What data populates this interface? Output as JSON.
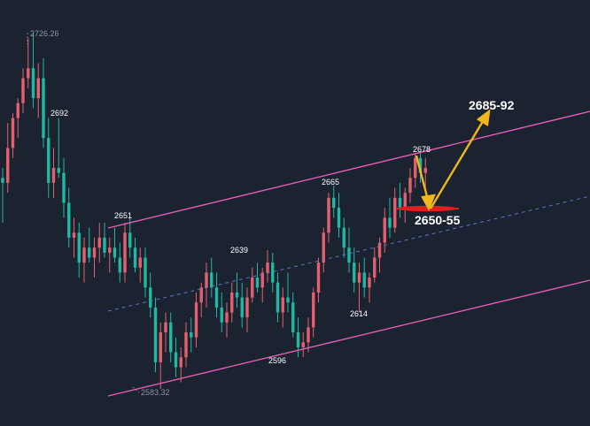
{
  "chart_data": {
    "type": "candlestick",
    "instrument_hint": "",
    "title": "",
    "xlabel": "",
    "ylabel": "",
    "ylim": [
      2570,
      2735
    ],
    "colors": {
      "background": "#1b2230",
      "up_candle": "#e4606e",
      "down_candle": "#1fb8a2",
      "channel_lines": "#e25db4",
      "midline": "#5a79c2",
      "arrows": "#f2b71b",
      "support_mark": "#e01e1e"
    },
    "price_labels": {
      "high": "2726.26",
      "low": "2583.32",
      "p2692": "2692",
      "p2651": "2651",
      "p2639": "2639",
      "p2665": "2665",
      "p2678": "2678",
      "p2614": "2614",
      "p2596": "2596"
    },
    "annotations": {
      "target": "2685-92",
      "support": "2650-55"
    },
    "ohlc": [
      [
        2668,
        2672,
        2650,
        2666
      ],
      [
        2666,
        2690,
        2662,
        2680
      ],
      [
        2680,
        2694,
        2676,
        2692
      ],
      [
        2692,
        2700,
        2684,
        2698
      ],
      [
        2698,
        2712,
        2694,
        2708
      ],
      [
        2708,
        2724,
        2704,
        2712
      ],
      [
        2712,
        2726.26,
        2696,
        2700
      ],
      [
        2700,
        2714,
        2692,
        2708
      ],
      [
        2708,
        2716,
        2680,
        2684
      ],
      [
        2684,
        2692,
        2660,
        2666
      ],
      [
        2666,
        2680,
        2660,
        2672
      ],
      [
        2672,
        2692,
        2668,
        2670
      ],
      [
        2670,
        2676,
        2652,
        2658
      ],
      [
        2658,
        2664,
        2640,
        2644
      ],
      [
        2644,
        2652,
        2636,
        2646
      ],
      [
        2646,
        2650,
        2628,
        2634
      ],
      [
        2634,
        2644,
        2626,
        2640
      ],
      [
        2640,
        2648,
        2634,
        2636
      ],
      [
        2636,
        2644,
        2628,
        2640
      ],
      [
        2640,
        2650,
        2634,
        2644
      ],
      [
        2644,
        2650,
        2636,
        2638
      ],
      [
        2638,
        2644,
        2630,
        2640
      ],
      [
        2640,
        2648,
        2634,
        2636
      ],
      [
        2636,
        2642,
        2626,
        2630
      ],
      [
        2630,
        2650,
        2626,
        2646
      ],
      [
        2646,
        2652,
        2636,
        2640
      ],
      [
        2640,
        2644,
        2630,
        2632
      ],
      [
        2632,
        2640,
        2626,
        2636
      ],
      [
        2636,
        2640,
        2620,
        2624
      ],
      [
        2624,
        2630,
        2612,
        2616
      ],
      [
        2616,
        2620,
        2590,
        2594
      ],
      [
        2594,
        2610,
        2583.32,
        2606
      ],
      [
        2606,
        2614,
        2598,
        2610
      ],
      [
        2610,
        2614,
        2594,
        2598
      ],
      [
        2598,
        2604,
        2588,
        2592
      ],
      [
        2592,
        2600,
        2586,
        2596
      ],
      [
        2596,
        2610,
        2592,
        2606
      ],
      [
        2606,
        2612,
        2598,
        2604
      ],
      [
        2604,
        2622,
        2600,
        2618
      ],
      [
        2618,
        2626,
        2612,
        2624
      ],
      [
        2624,
        2634,
        2616,
        2630
      ],
      [
        2630,
        2636,
        2620,
        2624
      ],
      [
        2624,
        2630,
        2612,
        2616
      ],
      [
        2616,
        2622,
        2606,
        2610
      ],
      [
        2610,
        2618,
        2604,
        2614
      ],
      [
        2614,
        2626,
        2610,
        2622
      ],
      [
        2622,
        2630,
        2616,
        2620
      ],
      [
        2620,
        2626,
        2608,
        2612
      ],
      [
        2612,
        2624,
        2606,
        2620
      ],
      [
        2620,
        2632,
        2618,
        2628
      ],
      [
        2628,
        2634,
        2622,
        2624
      ],
      [
        2624,
        2632,
        2618,
        2630
      ],
      [
        2630,
        2639,
        2626,
        2634
      ],
      [
        2634,
        2638,
        2622,
        2626
      ],
      [
        2626,
        2630,
        2610,
        2614
      ],
      [
        2614,
        2624,
        2608,
        2620
      ],
      [
        2620,
        2630,
        2614,
        2618
      ],
      [
        2618,
        2622,
        2604,
        2606
      ],
      [
        2606,
        2612,
        2596,
        2600
      ],
      [
        2600,
        2606,
        2596,
        2602
      ],
      [
        2602,
        2612,
        2598,
        2608
      ],
      [
        2608,
        2624,
        2604,
        2622
      ],
      [
        2622,
        2636,
        2618,
        2634
      ],
      [
        2634,
        2648,
        2630,
        2646
      ],
      [
        2646,
        2662,
        2642,
        2660
      ],
      [
        2660,
        2665,
        2652,
        2656
      ],
      [
        2656,
        2662,
        2644,
        2648
      ],
      [
        2648,
        2652,
        2636,
        2640
      ],
      [
        2640,
        2648,
        2630,
        2634
      ],
      [
        2634,
        2640,
        2622,
        2626
      ],
      [
        2626,
        2634,
        2614,
        2630
      ],
      [
        2630,
        2636,
        2620,
        2624
      ],
      [
        2624,
        2630,
        2618,
        2628
      ],
      [
        2628,
        2640,
        2626,
        2636
      ],
      [
        2636,
        2644,
        2630,
        2642
      ],
      [
        2642,
        2656,
        2638,
        2652
      ],
      [
        2652,
        2660,
        2644,
        2648
      ],
      [
        2648,
        2664,
        2646,
        2660
      ],
      [
        2660,
        2666,
        2652,
        2656
      ],
      [
        2656,
        2664,
        2650,
        2662
      ],
      [
        2662,
        2672,
        2658,
        2668
      ],
      [
        2668,
        2678,
        2664,
        2676
      ],
      [
        2676,
        2678,
        2666,
        2670
      ],
      [
        2670,
        2676,
        2664,
        2672
      ]
    ]
  }
}
